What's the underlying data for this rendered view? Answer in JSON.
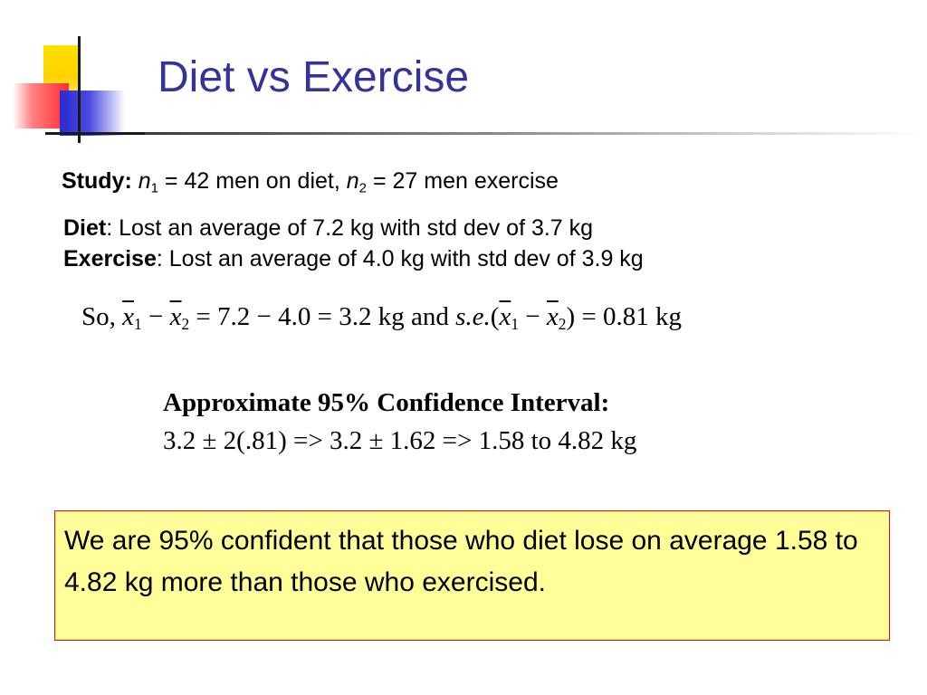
{
  "slide": {
    "title": "Diet vs Exercise",
    "study": {
      "label": "Study:",
      "n1_var": "n",
      "n1_sub": "1",
      "n1_text": " = 42 men on diet, ",
      "n2_var": "n",
      "n2_sub": "2",
      "n2_text": " = 27 men exercise"
    },
    "diet": {
      "label": "Diet",
      "text": ": Lost an average of 7.2 kg with std dev of 3.7 kg"
    },
    "exercise": {
      "label": "Exercise",
      "text": ": Lost an average of 4.0 kg with std dev of 3.9 kg"
    },
    "formula": {
      "so": "So, ",
      "x": "x",
      "sub1": "1",
      "sub2": "2",
      "minus": " − ",
      "result_text": " = 7.2 − 4.0 = 3.2 kg  and  ",
      "se": "s.e.",
      "open_paren": "(",
      "close_paren": ")",
      "se_result": " = 0.81 kg"
    },
    "ci": {
      "title": "Approximate 95% Confidence Interval:",
      "calc": "3.2 ± 2(.81) => 3.2 ± 1.62 => 1.58 to 4.82 kg"
    },
    "conclusion": "We are 95% confident that those who diet lose on average 1.58 to 4.82 kg more than those who exercised."
  },
  "colors": {
    "title": "#333399",
    "box_fill": "#ffff99",
    "box_border": "#ff0000"
  }
}
